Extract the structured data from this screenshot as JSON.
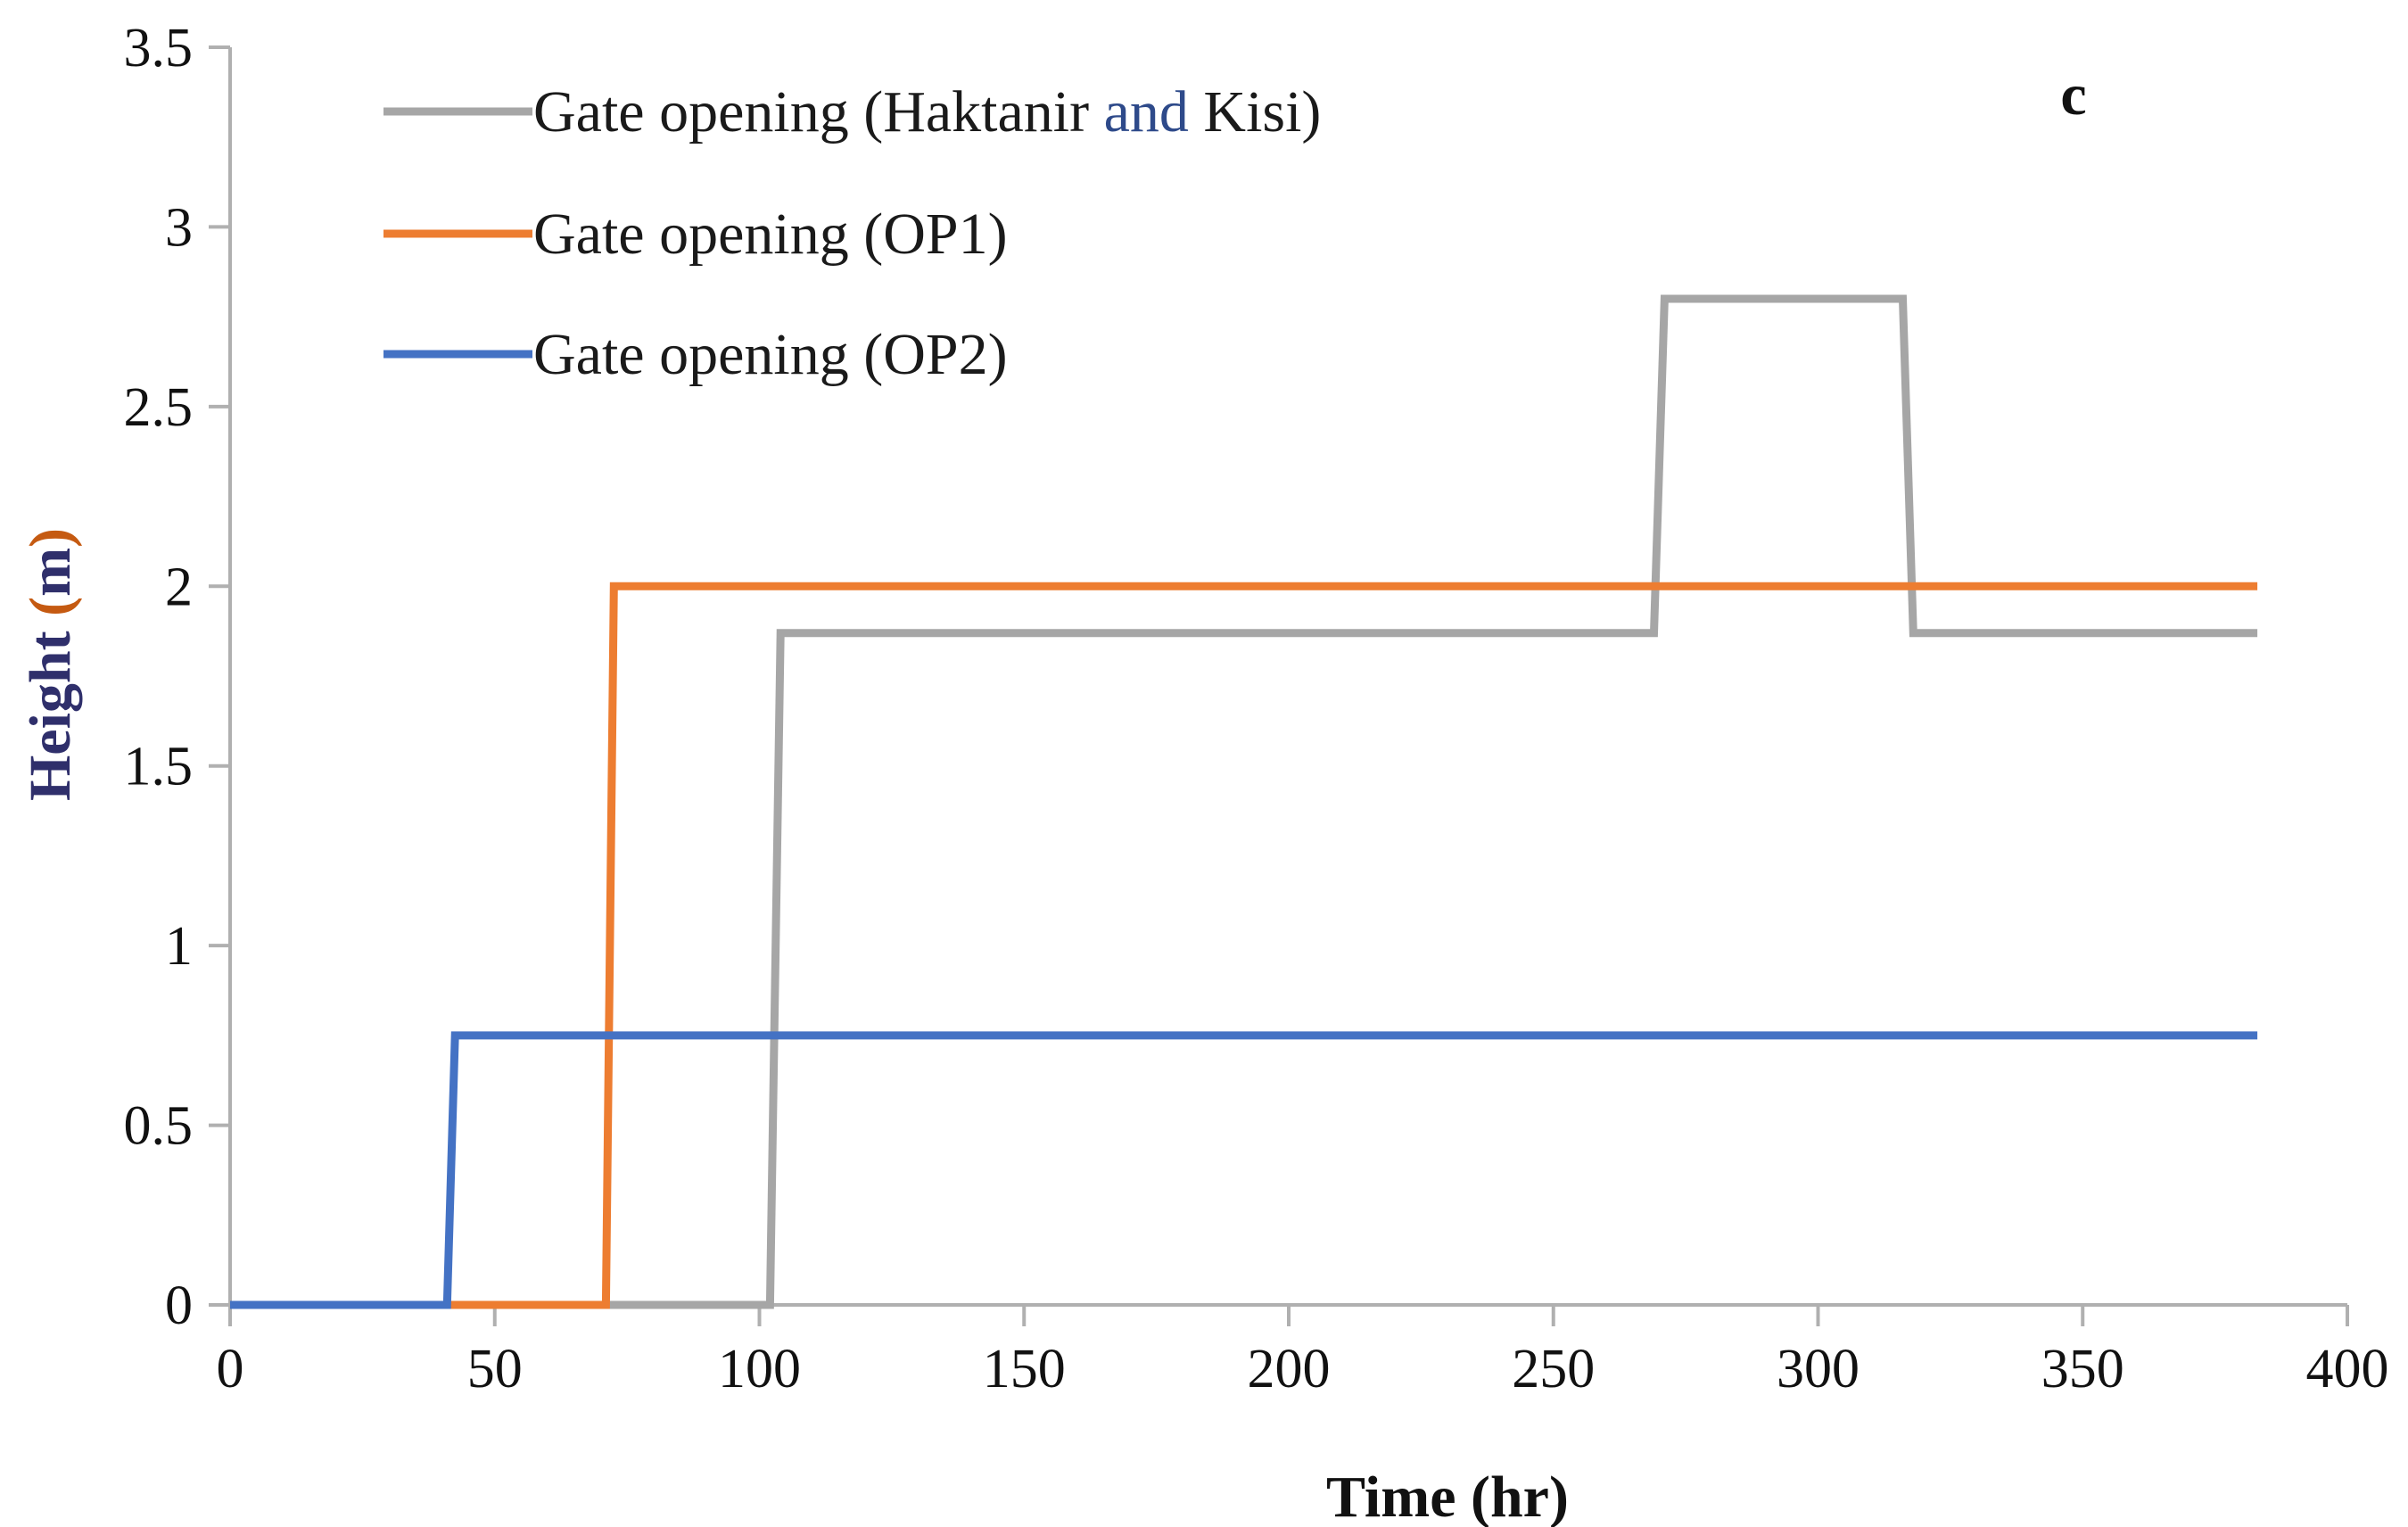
{
  "chart_data": {
    "type": "line",
    "title": "",
    "panel_label": "c",
    "xlabel": "Time (hr)",
    "ylabel": "Height (m)",
    "xlim": [
      0,
      400
    ],
    "ylim": [
      0,
      3.5
    ],
    "x_ticks": [
      0,
      50,
      100,
      150,
      200,
      250,
      300,
      350,
      400
    ],
    "y_ticks": [
      0,
      0.5,
      1,
      1.5,
      2,
      2.5,
      3,
      3.5
    ],
    "x_tick_labels": [
      "0",
      "50",
      "100",
      "150",
      "200",
      "250",
      "300",
      "350",
      "400"
    ],
    "y_tick_labels": [
      "0",
      "0.5",
      "1",
      "1.5",
      "2",
      "2.5",
      "3",
      "3.5"
    ],
    "grid": false,
    "legend_position": "top-left",
    "series": [
      {
        "name": "Gate opening (Haktanir and Kisi)",
        "legend_parts": [
          "Gate opening (Haktanir ",
          "and",
          " Kisi)"
        ],
        "color": "#a6a6a6",
        "points": [
          [
            0,
            0
          ],
          [
            102,
            0
          ],
          [
            104,
            1.87
          ],
          [
            269,
            1.87
          ],
          [
            271,
            2.8
          ],
          [
            316,
            2.8
          ],
          [
            318,
            1.87
          ],
          [
            383,
            1.87
          ]
        ]
      },
      {
        "name": "Gate opening (OP1)",
        "color": "#ed7d31",
        "points": [
          [
            0,
            0
          ],
          [
            71,
            0
          ],
          [
            72.5,
            2.0
          ],
          [
            383,
            2.0
          ]
        ]
      },
      {
        "name": "Gate opening (OP2)",
        "color": "#4472c4",
        "points": [
          [
            0,
            0
          ],
          [
            41,
            0
          ],
          [
            42.5,
            0.75
          ],
          [
            383,
            0.75
          ]
        ]
      }
    ],
    "ylabel_color": "#2f2f6b",
    "ylabel_paren_color": "#c55a11",
    "legend_and_color": "#2e4a8a"
  }
}
